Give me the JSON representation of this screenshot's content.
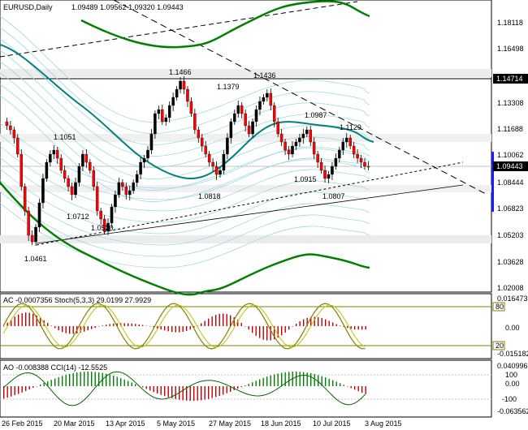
{
  "header": {
    "symbol_tf": "EURUSD,Daily",
    "ohlc": "1.09489 1.09562 1.09320 1.09443"
  },
  "main": {
    "price_axis": [
      "1.18118",
      "1.16498",
      "1.14714",
      "1.13308",
      "1.11688",
      "1.10062",
      "1.09443",
      "1.08444",
      "1.06823",
      "1.05203",
      "1.03628",
      "1.02008"
    ],
    "current_price": "1.09443",
    "line_price": "1.14714",
    "peak_labels": [
      "1.1466",
      "1.1379",
      "1.1436",
      "1.0987",
      "1.1129",
      "1.1051"
    ],
    "trough_labels": [
      "1.0712",
      "1.0520",
      "1.0461",
      "1.0818",
      "1.0915",
      "1.0807"
    ]
  },
  "indicator1": {
    "label": "AC -0.0007356  Stoch(5,3,3) 29.0199 27.9929",
    "axis_top": "0.016473",
    "axis_mid": "0.00",
    "axis_bot": "-0.015182",
    "level_80": "80",
    "level_20": "20"
  },
  "indicator2": {
    "label": "AO -0.008388  CCI(14) -12.5525",
    "axis_top": "0.040996",
    "axis_100": "100",
    "axis_mid": "0.00",
    "axis_m100": "-100",
    "axis_bot": "-0.063562"
  },
  "time_axis": [
    "26 Feb 2015",
    "20 Mar 2015",
    "13 Apr 2015",
    "5 May 2015",
    "27 May 2015",
    "18 Jun 2015",
    "10 Jul 2015",
    "3 Aug 2015"
  ],
  "colors": {
    "bull": "#000000",
    "bear": "#ff0000",
    "ma": "#008080",
    "bands": "#008000",
    "stoch": "#808000"
  }
}
